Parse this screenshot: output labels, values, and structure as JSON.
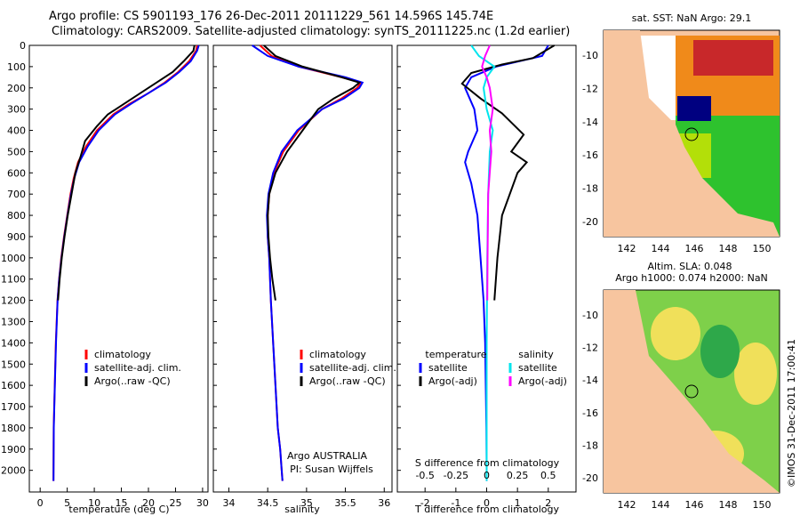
{
  "header": {
    "title_line1": "Argo profile: CS 5901193_176 26-Dec-2011 20111229_561 14.596S 145.74E",
    "title_line2": "Climatology: CARS2009. Satellite-adjusted climatology: synTS_20111225.nc (1.2d earlier)"
  },
  "credit": "©IMOS 31-Dec-2011 17:00:41",
  "depth_ticks": [
    "0",
    "100",
    "200",
    "300",
    "400",
    "500",
    "600",
    "700",
    "800",
    "900",
    "1000",
    "1100",
    "1200",
    "1300",
    "1400",
    "1500",
    "1600",
    "1700",
    "1800",
    "1900",
    "2000"
  ],
  "colors": {
    "climatology": "#ff0000",
    "satellite": "#0000ff",
    "argo": "#000000",
    "sat_s": "#00e5ee",
    "argo_s": "#ff00ff",
    "land": "#f7c59f",
    "cloud": "#000080"
  },
  "panel_temp": {
    "xlabel": "temperature (deg C)",
    "ticks": [
      "0",
      "5",
      "10",
      "15",
      "20",
      "25",
      "30"
    ],
    "legend": [
      "climatology",
      "satellite-adj. clim.",
      "Argo(..raw -QC)"
    ]
  },
  "panel_sal": {
    "xlabel": "salinity",
    "ticks": [
      "34",
      "34.5",
      "35",
      "35.5",
      "36"
    ],
    "legend": [
      "climatology",
      "satellite-adj. clim.",
      "Argo(..raw -QC)"
    ],
    "note_line1": "Argo AUSTRALIA",
    "note_line2": "PI: Susan Wijffels"
  },
  "panel_diff": {
    "xlabel_bottom": "T difference from climatology",
    "xlabel_top": "S difference from climatology",
    "ticks_t": [
      "-2",
      "-1",
      "0",
      "1",
      "2"
    ],
    "ticks_s": [
      "-0.5",
      "-0.25",
      "0",
      "0.25",
      "0.5"
    ],
    "legend_t_title": "temperature",
    "legend_s_title": "salinity",
    "legend_t": [
      "satellite",
      "Argo(-adj)"
    ],
    "legend_s": [
      "satellite",
      "Argo(-adj)"
    ]
  },
  "map_sst": {
    "title": "sat. SST: NaN Argo: 29.1",
    "lat_ticks": [
      "-10",
      "-12",
      "-14",
      "-16",
      "-18",
      "-20"
    ],
    "lon_ticks": [
      "142",
      "144",
      "146",
      "148",
      "150"
    ]
  },
  "map_sla": {
    "title_line1": "Altim. SLA: 0.048",
    "title_line2": "Argo h1000: 0.074 h2000: NaN",
    "lat_ticks": [
      "-10",
      "-12",
      "-14",
      "-16",
      "-18",
      "-20"
    ],
    "lon_ticks": [
      "142",
      "144",
      "146",
      "148",
      "150"
    ]
  },
  "chart_data": [
    {
      "type": "line",
      "title": "",
      "xlabel": "temperature (deg C)",
      "ylabel": "",
      "xlim": [
        -2,
        31
      ],
      "ylim": [
        2060,
        0
      ],
      "series": [
        {
          "name": "climatology",
          "x": [
            29,
            28.8,
            27.5,
            25.5,
            23,
            20,
            16.5,
            13.5,
            10.5,
            8.5,
            7,
            6.2,
            5.6,
            5,
            4.4,
            3.9,
            3.5,
            3.2,
            2.9,
            2.7,
            2.5,
            2.45
          ],
          "y": [
            0,
            25,
            75,
            125,
            175,
            225,
            275,
            325,
            400,
            475,
            550,
            625,
            700,
            800,
            900,
            1000,
            1100,
            1200,
            1400,
            1600,
            1800,
            2050
          ]
        },
        {
          "name": "satellite-adj. clim.",
          "x": [
            29.3,
            29,
            27.8,
            25.7,
            23.2,
            20,
            16.8,
            13.8,
            10.8,
            8.8,
            7.2,
            6.3,
            5.7,
            5.05,
            4.45,
            3.95,
            3.52,
            3.22,
            2.92,
            2.72,
            2.52,
            2.47
          ],
          "y": [
            0,
            25,
            75,
            125,
            175,
            225,
            275,
            325,
            400,
            475,
            550,
            625,
            700,
            800,
            900,
            1000,
            1100,
            1200,
            1400,
            1600,
            1800,
            2050
          ]
        },
        {
          "name": "Argo(..raw -QC)",
          "x": [
            28.5,
            28.3,
            26.5,
            24.5,
            21.5,
            18.5,
            15.5,
            12.5,
            10.5,
            8.3,
            7.5,
            6.5,
            5.8,
            5.1,
            4.5,
            4,
            3.6,
            3.3
          ],
          "y": [
            0,
            25,
            75,
            125,
            175,
            225,
            275,
            325,
            380,
            450,
            520,
            600,
            700,
            800,
            900,
            1000,
            1100,
            1200
          ]
        }
      ]
    },
    {
      "type": "line",
      "title": "",
      "xlabel": "salinity",
      "ylabel": "",
      "xlim": [
        33.8,
        36.1
      ],
      "ylim": [
        2060,
        0
      ],
      "series": [
        {
          "name": "climatology",
          "x": [
            34.4,
            34.55,
            34.9,
            35.45,
            35.7,
            35.65,
            35.45,
            35.2,
            34.9,
            34.7,
            34.58,
            34.52,
            34.5,
            34.5,
            34.52,
            34.54,
            34.57,
            34.6,
            34.63,
            34.66,
            34.68,
            34.69
          ],
          "y": [
            0,
            50,
            100,
            150,
            175,
            200,
            250,
            300,
            400,
            500,
            600,
            700,
            800,
            900,
            1000,
            1200,
            1400,
            1600,
            1800,
            1900,
            2000,
            2050
          ]
        },
        {
          "name": "satellite-adj. clim.",
          "x": [
            34.3,
            34.5,
            34.9,
            35.5,
            35.72,
            35.68,
            35.48,
            35.2,
            34.88,
            34.68,
            34.57,
            34.51,
            34.49,
            34.5,
            34.52,
            34.54,
            34.57,
            34.6,
            34.63,
            34.66,
            34.68,
            34.69
          ],
          "y": [
            0,
            50,
            100,
            150,
            175,
            200,
            250,
            300,
            400,
            500,
            600,
            700,
            800,
            900,
            1000,
            1200,
            1400,
            1600,
            1800,
            1900,
            2000,
            2050
          ]
        },
        {
          "name": "Argo(..raw -QC)",
          "x": [
            34.45,
            34.6,
            34.95,
            35.45,
            35.68,
            35.6,
            35.35,
            35.15,
            34.95,
            34.75,
            34.6,
            34.52,
            34.5,
            34.51,
            34.53,
            34.56,
            34.6
          ],
          "y": [
            0,
            50,
            100,
            150,
            175,
            200,
            250,
            300,
            400,
            500,
            600,
            700,
            800,
            900,
            1000,
            1100,
            1200
          ]
        }
      ]
    },
    {
      "type": "line",
      "title": "",
      "xlabel": "T difference from climatology",
      "ylabel": "",
      "xlim": [
        -2.9,
        2.9
      ],
      "ylim": [
        2060,
        0
      ],
      "series": [
        {
          "name": "temperature satellite",
          "x": [
            2,
            1.8,
            0.3,
            -0.5,
            -0.7,
            -0.4,
            -0.3,
            -0.6,
            -0.7,
            -0.5,
            -0.3,
            -0.2,
            -0.1,
            -0.05,
            -0.03,
            -0.01,
            0,
            0
          ],
          "y": [
            0,
            50,
            100,
            150,
            200,
            300,
            400,
            500,
            550,
            650,
            800,
            1000,
            1200,
            1400,
            1600,
            1800,
            2000,
            2050
          ]
        },
        {
          "name": "temperature Argo(-adj)",
          "x": [
            2.2,
            1.5,
            0.5,
            -0.5,
            -0.8,
            -0.2,
            0.5,
            1.2,
            0.8,
            1.3,
            1,
            0.5,
            0.35,
            0.25
          ],
          "y": [
            0,
            60,
            90,
            130,
            180,
            250,
            320,
            420,
            500,
            550,
            600,
            800,
            1000,
            1200
          ]
        },
        {
          "name": "salinity satellite",
          "x": [
            -0.5,
            -0.25,
            0.25,
            0,
            -0.1,
            0,
            0.2,
            0.1,
            0.05,
            0.02,
            0,
            0,
            0
          ],
          "y": [
            0,
            50,
            100,
            150,
            200,
            300,
            400,
            500,
            700,
            1000,
            1400,
            1800,
            2050
          ]
        },
        {
          "name": "salinity Argo(-adj)",
          "x": [
            0.1,
            -0.05,
            -0.15,
            0,
            0.1,
            0.2,
            0.1,
            0.15,
            0.05,
            0.03,
            0.02
          ],
          "y": [
            0,
            50,
            100,
            150,
            200,
            300,
            400,
            500,
            700,
            1000,
            1200
          ]
        }
      ]
    }
  ]
}
